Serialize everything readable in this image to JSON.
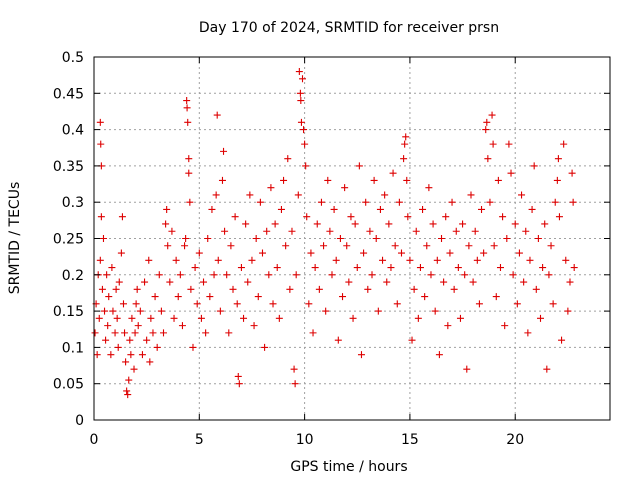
{
  "chart_data": {
    "type": "scatter",
    "title": "Day 170 of 2024, SRMTID for receiver prsn",
    "xlabel": "GPS time / hours",
    "ylabel": "SRMTID / TECUs",
    "xlim": [
      0,
      24.5
    ],
    "ylim": [
      0,
      0.5
    ],
    "x_ticks": [
      0,
      5,
      10,
      15,
      20
    ],
    "x_tick_labels": [
      "0",
      "5",
      "10",
      "15",
      "20"
    ],
    "y_ticks": [
      0,
      0.05,
      0.1,
      0.15,
      0.2,
      0.25,
      0.3,
      0.35,
      0.4,
      0.45,
      0.5
    ],
    "y_tick_labels": [
      "0",
      "0.05",
      "0.1",
      "0.15",
      "0.2",
      "0.25",
      "0.3",
      "0.35",
      "0.4",
      "0.45",
      "0.5"
    ],
    "grid": true,
    "marker": "plus",
    "series": [
      {
        "name": "SRMTID",
        "color": "#dd0000",
        "points": [
          [
            0.05,
            0.12
          ],
          [
            0.1,
            0.16
          ],
          [
            0.15,
            0.09
          ],
          [
            0.2,
            0.2
          ],
          [
            0.25,
            0.14
          ],
          [
            0.3,
            0.22
          ],
          [
            0.3,
            0.41
          ],
          [
            0.32,
            0.38
          ],
          [
            0.35,
            0.35
          ],
          [
            0.35,
            0.28
          ],
          [
            0.4,
            0.18
          ],
          [
            0.45,
            0.25
          ],
          [
            0.5,
            0.15
          ],
          [
            0.55,
            0.11
          ],
          [
            0.6,
            0.2
          ],
          [
            0.65,
            0.13
          ],
          [
            0.7,
            0.17
          ],
          [
            0.8,
            0.09
          ],
          [
            0.85,
            0.21
          ],
          [
            0.9,
            0.15
          ],
          [
            1.0,
            0.12
          ],
          [
            1.05,
            0.18
          ],
          [
            1.1,
            0.14
          ],
          [
            1.15,
            0.1
          ],
          [
            1.2,
            0.19
          ],
          [
            1.3,
            0.23
          ],
          [
            1.35,
            0.28
          ],
          [
            1.4,
            0.16
          ],
          [
            1.45,
            0.12
          ],
          [
            1.5,
            0.08
          ],
          [
            1.55,
            0.04
          ],
          [
            1.6,
            0.035
          ],
          [
            1.65,
            0.055
          ],
          [
            1.7,
            0.11
          ],
          [
            1.75,
            0.09
          ],
          [
            1.8,
            0.14
          ],
          [
            1.9,
            0.07
          ],
          [
            1.95,
            0.12
          ],
          [
            2.0,
            0.16
          ],
          [
            2.05,
            0.18
          ],
          [
            2.1,
            0.13
          ],
          [
            2.2,
            0.15
          ],
          [
            2.3,
            0.09
          ],
          [
            2.4,
            0.19
          ],
          [
            2.5,
            0.11
          ],
          [
            2.6,
            0.22
          ],
          [
            2.65,
            0.08
          ],
          [
            2.7,
            0.14
          ],
          [
            2.8,
            0.12
          ],
          [
            2.9,
            0.17
          ],
          [
            3.0,
            0.1
          ],
          [
            3.1,
            0.2
          ],
          [
            3.2,
            0.15
          ],
          [
            3.3,
            0.12
          ],
          [
            3.4,
            0.27
          ],
          [
            3.45,
            0.29
          ],
          [
            3.5,
            0.24
          ],
          [
            3.6,
            0.19
          ],
          [
            3.7,
            0.26
          ],
          [
            3.8,
            0.14
          ],
          [
            3.9,
            0.22
          ],
          [
            4.0,
            0.17
          ],
          [
            4.1,
            0.2
          ],
          [
            4.2,
            0.13
          ],
          [
            4.3,
            0.24
          ],
          [
            4.35,
            0.25
          ],
          [
            4.4,
            0.44
          ],
          [
            4.42,
            0.43
          ],
          [
            4.45,
            0.41
          ],
          [
            4.5,
            0.36
          ],
          [
            4.5,
            0.34
          ],
          [
            4.55,
            0.3
          ],
          [
            4.6,
            0.18
          ],
          [
            4.7,
            0.1
          ],
          [
            4.8,
            0.21
          ],
          [
            4.9,
            0.16
          ],
          [
            5.0,
            0.23
          ],
          [
            5.1,
            0.14
          ],
          [
            5.2,
            0.19
          ],
          [
            5.3,
            0.12
          ],
          [
            5.4,
            0.25
          ],
          [
            5.5,
            0.17
          ],
          [
            5.6,
            0.29
          ],
          [
            5.7,
            0.2
          ],
          [
            5.8,
            0.31
          ],
          [
            5.85,
            0.42
          ],
          [
            5.9,
            0.22
          ],
          [
            6.0,
            0.15
          ],
          [
            6.1,
            0.33
          ],
          [
            6.15,
            0.37
          ],
          [
            6.2,
            0.26
          ],
          [
            6.3,
            0.2
          ],
          [
            6.4,
            0.12
          ],
          [
            6.5,
            0.24
          ],
          [
            6.6,
            0.18
          ],
          [
            6.7,
            0.28
          ],
          [
            6.8,
            0.16
          ],
          [
            6.85,
            0.06
          ],
          [
            6.9,
            0.05
          ],
          [
            7.0,
            0.21
          ],
          [
            7.1,
            0.14
          ],
          [
            7.2,
            0.27
          ],
          [
            7.3,
            0.19
          ],
          [
            7.4,
            0.31
          ],
          [
            7.5,
            0.22
          ],
          [
            7.6,
            0.13
          ],
          [
            7.7,
            0.25
          ],
          [
            7.8,
            0.17
          ],
          [
            7.9,
            0.3
          ],
          [
            8.0,
            0.23
          ],
          [
            8.1,
            0.1
          ],
          [
            8.2,
            0.26
          ],
          [
            8.3,
            0.2
          ],
          [
            8.4,
            0.32
          ],
          [
            8.5,
            0.16
          ],
          [
            8.6,
            0.27
          ],
          [
            8.7,
            0.21
          ],
          [
            8.8,
            0.14
          ],
          [
            8.9,
            0.29
          ],
          [
            9.0,
            0.33
          ],
          [
            9.1,
            0.24
          ],
          [
            9.2,
            0.36
          ],
          [
            9.3,
            0.18
          ],
          [
            9.4,
            0.26
          ],
          [
            9.5,
            0.07
          ],
          [
            9.55,
            0.05
          ],
          [
            9.6,
            0.2
          ],
          [
            9.7,
            0.31
          ],
          [
            9.75,
            0.48
          ],
          [
            9.8,
            0.45
          ],
          [
            9.82,
            0.44
          ],
          [
            9.85,
            0.41
          ],
          [
            9.9,
            0.47
          ],
          [
            9.95,
            0.4
          ],
          [
            10.0,
            0.38
          ],
          [
            10.05,
            0.35
          ],
          [
            10.1,
            0.28
          ],
          [
            10.2,
            0.16
          ],
          [
            10.3,
            0.23
          ],
          [
            10.4,
            0.12
          ],
          [
            10.5,
            0.21
          ],
          [
            10.6,
            0.27
          ],
          [
            10.7,
            0.18
          ],
          [
            10.8,
            0.3
          ],
          [
            10.9,
            0.24
          ],
          [
            11.0,
            0.15
          ],
          [
            11.1,
            0.33
          ],
          [
            11.2,
            0.26
          ],
          [
            11.3,
            0.2
          ],
          [
            11.4,
            0.29
          ],
          [
            11.5,
            0.22
          ],
          [
            11.6,
            0.11
          ],
          [
            11.7,
            0.25
          ],
          [
            11.8,
            0.17
          ],
          [
            11.9,
            0.32
          ],
          [
            12.0,
            0.24
          ],
          [
            12.1,
            0.19
          ],
          [
            12.2,
            0.28
          ],
          [
            12.3,
            0.14
          ],
          [
            12.4,
            0.27
          ],
          [
            12.5,
            0.21
          ],
          [
            12.6,
            0.35
          ],
          [
            12.7,
            0.09
          ],
          [
            12.8,
            0.23
          ],
          [
            12.9,
            0.3
          ],
          [
            13.0,
            0.18
          ],
          [
            13.1,
            0.26
          ],
          [
            13.2,
            0.2
          ],
          [
            13.3,
            0.33
          ],
          [
            13.4,
            0.25
          ],
          [
            13.5,
            0.15
          ],
          [
            13.6,
            0.29
          ],
          [
            13.7,
            0.22
          ],
          [
            13.8,
            0.31
          ],
          [
            13.9,
            0.19
          ],
          [
            14.0,
            0.27
          ],
          [
            14.1,
            0.21
          ],
          [
            14.2,
            0.34
          ],
          [
            14.3,
            0.24
          ],
          [
            14.4,
            0.16
          ],
          [
            14.5,
            0.3
          ],
          [
            14.6,
            0.23
          ],
          [
            14.7,
            0.36
          ],
          [
            14.75,
            0.38
          ],
          [
            14.8,
            0.39
          ],
          [
            14.85,
            0.33
          ],
          [
            14.9,
            0.28
          ],
          [
            15.0,
            0.22
          ],
          [
            15.1,
            0.11
          ],
          [
            15.2,
            0.18
          ],
          [
            15.3,
            0.26
          ],
          [
            15.4,
            0.14
          ],
          [
            15.5,
            0.21
          ],
          [
            15.6,
            0.29
          ],
          [
            15.7,
            0.17
          ],
          [
            15.8,
            0.24
          ],
          [
            15.9,
            0.32
          ],
          [
            16.0,
            0.2
          ],
          [
            16.1,
            0.27
          ],
          [
            16.2,
            0.15
          ],
          [
            16.3,
            0.22
          ],
          [
            16.4,
            0.09
          ],
          [
            16.5,
            0.25
          ],
          [
            16.6,
            0.19
          ],
          [
            16.7,
            0.28
          ],
          [
            16.8,
            0.13
          ],
          [
            16.9,
            0.23
          ],
          [
            17.0,
            0.3
          ],
          [
            17.1,
            0.18
          ],
          [
            17.2,
            0.26
          ],
          [
            17.3,
            0.21
          ],
          [
            17.4,
            0.14
          ],
          [
            17.5,
            0.27
          ],
          [
            17.6,
            0.2
          ],
          [
            17.7,
            0.07
          ],
          [
            17.8,
            0.24
          ],
          [
            17.9,
            0.31
          ],
          [
            18.0,
            0.19
          ],
          [
            18.1,
            0.26
          ],
          [
            18.2,
            0.22
          ],
          [
            18.3,
            0.16
          ],
          [
            18.4,
            0.29
          ],
          [
            18.5,
            0.23
          ],
          [
            18.6,
            0.4
          ],
          [
            18.65,
            0.41
          ],
          [
            18.7,
            0.36
          ],
          [
            18.8,
            0.3
          ],
          [
            18.9,
            0.42
          ],
          [
            18.95,
            0.38
          ],
          [
            19.0,
            0.24
          ],
          [
            19.1,
            0.17
          ],
          [
            19.2,
            0.33
          ],
          [
            19.3,
            0.21
          ],
          [
            19.4,
            0.28
          ],
          [
            19.5,
            0.13
          ],
          [
            19.6,
            0.25
          ],
          [
            19.7,
            0.38
          ],
          [
            19.8,
            0.34
          ],
          [
            19.9,
            0.2
          ],
          [
            20.0,
            0.27
          ],
          [
            20.1,
            0.16
          ],
          [
            20.2,
            0.23
          ],
          [
            20.3,
            0.31
          ],
          [
            20.4,
            0.19
          ],
          [
            20.5,
            0.26
          ],
          [
            20.6,
            0.12
          ],
          [
            20.7,
            0.22
          ],
          [
            20.8,
            0.29
          ],
          [
            20.9,
            0.35
          ],
          [
            21.0,
            0.18
          ],
          [
            21.1,
            0.25
          ],
          [
            21.2,
            0.14
          ],
          [
            21.3,
            0.21
          ],
          [
            21.4,
            0.27
          ],
          [
            21.5,
            0.07
          ],
          [
            21.6,
            0.2
          ],
          [
            21.7,
            0.24
          ],
          [
            21.8,
            0.16
          ],
          [
            21.9,
            0.3
          ],
          [
            22.0,
            0.33
          ],
          [
            22.05,
            0.36
          ],
          [
            22.1,
            0.28
          ],
          [
            22.2,
            0.11
          ],
          [
            22.3,
            0.38
          ],
          [
            22.4,
            0.22
          ],
          [
            22.5,
            0.15
          ],
          [
            22.6,
            0.19
          ],
          [
            22.7,
            0.34
          ],
          [
            22.75,
            0.3
          ],
          [
            22.8,
            0.21
          ]
        ]
      }
    ]
  }
}
